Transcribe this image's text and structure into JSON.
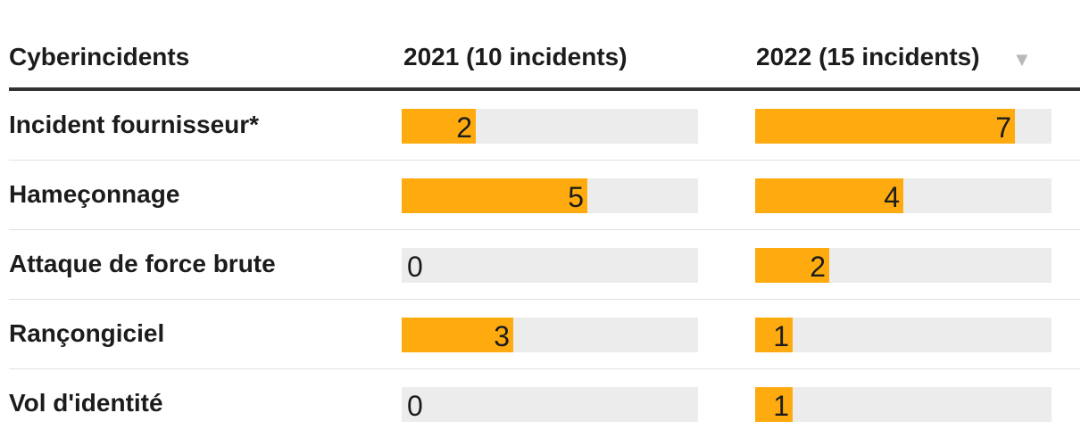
{
  "chart_data": {
    "type": "table",
    "headers": [
      "Cyberincidents",
      "2021 (10 incidents)",
      "2022 (15 incidents)"
    ],
    "max": 8,
    "colors": {
      "bar": "#ffab0f",
      "track": "#ececec"
    },
    "rows": [
      {
        "label": "Incident fournisseur*",
        "v2021": 2,
        "v2022": 7
      },
      {
        "label": "Hameçonnage",
        "v2021": 5,
        "v2022": 4
      },
      {
        "label": "Attaque de force brute",
        "v2021": 0,
        "v2022": 2
      },
      {
        "label": "Rançongiciel",
        "v2021": 3,
        "v2022": 1
      },
      {
        "label": "Vol d'identité",
        "v2021": 0,
        "v2022": 1
      }
    ]
  },
  "sort_icon": "triangle-down-icon"
}
